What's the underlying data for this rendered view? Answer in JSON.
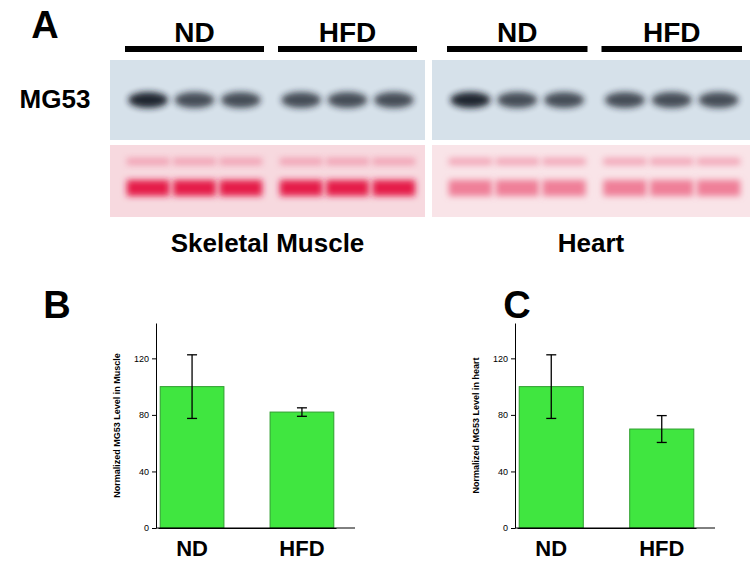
{
  "chart_data": [
    {
      "type": "blot",
      "title": "A",
      "row_label": "MG53",
      "groups": [
        {
          "label": "Skeletal Muscle",
          "conditions": [
            "ND",
            "HFD"
          ]
        },
        {
          "label": "Heart",
          "conditions": [
            "ND",
            "HFD"
          ]
        }
      ]
    },
    {
      "type": "bar",
      "title": "B",
      "y_label": "Normalized MG53 Level in Muscle",
      "categories": [
        "ND",
        "HFD"
      ],
      "values": [
        100,
        82
      ],
      "errors": [
        22.5,
        3
      ],
      "color": "#40e640",
      "ylim": [
        0,
        145
      ],
      "yticks": [
        0,
        40,
        80,
        120
      ]
    },
    {
      "type": "bar",
      "title": "C",
      "y_label": "Normalized MG53 Level in heart",
      "categories": [
        "ND",
        "HFD"
      ],
      "values": [
        100,
        70
      ],
      "errors": [
        22.5,
        9.5
      ],
      "color": "#40e640",
      "ylim": [
        0,
        145
      ],
      "yticks": [
        0,
        40,
        80,
        120
      ]
    }
  ]
}
